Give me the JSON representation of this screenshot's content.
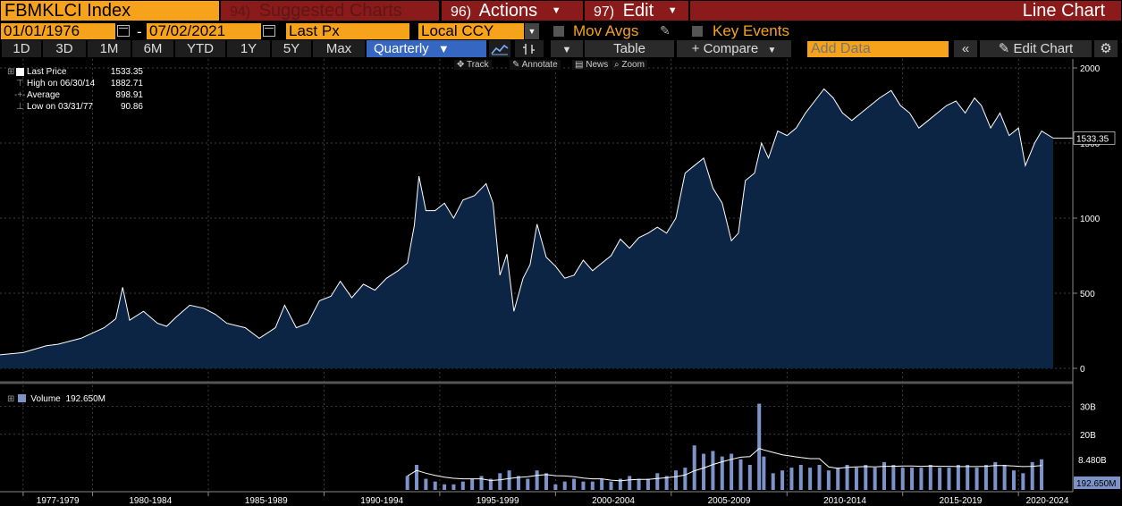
{
  "header": {
    "ticker": "FBMKLCI Index",
    "suggested_num": "94)",
    "suggested_label": "Suggested Charts",
    "actions_num": "96)",
    "actions_label": "Actions",
    "edit_num": "97)",
    "edit_label": "Edit",
    "title": "Line Chart"
  },
  "range": {
    "start": "01/01/1976",
    "end": "07/02/2021",
    "dash": "-",
    "field": "Last Px",
    "currency": "Local CCY",
    "mov_avgs": "Mov Avgs",
    "key_events": "Key Events"
  },
  "toolbar": {
    "periods": [
      "1D",
      "3D",
      "1M",
      "6M",
      "YTD",
      "1Y",
      "5Y",
      "Max"
    ],
    "frequency": "Quarterly",
    "table": "Table",
    "compare": "+ Compare",
    "add_data_placeholder": "Add Data",
    "edit_chart": "Edit Chart"
  },
  "chart_tools": [
    "Track",
    "Annotate",
    "News",
    "Zoom"
  ],
  "legend": {
    "last_price_label": "Last Price",
    "last_price_value": "1533.35",
    "high_label": "High on 06/30/14",
    "high_value": "1882.71",
    "average_label": "Average",
    "average_value": "898.91",
    "low_label": "Low on 03/31/77",
    "low_value": "90.86"
  },
  "volume_legend": {
    "label": "Volume",
    "value": "192.650M"
  },
  "price_axis": {
    "ticks": [
      "2000",
      "1500",
      "1000",
      "500",
      "0"
    ],
    "last_tag": "1533.35"
  },
  "volume_axis": {
    "ticks": [
      "30B",
      "20B"
    ],
    "avg_tag": "8.480B",
    "last_tag": "192.650M"
  },
  "x_axis": [
    "1977-1979",
    "1980-1984",
    "1985-1989",
    "1990-1994",
    "1995-1999",
    "2000-2004",
    "2005-2009",
    "2010-2014",
    "2015-2019",
    "2020-2024"
  ],
  "colors": {
    "accent": "#f7a21b",
    "header": "#8b1a1a",
    "active": "#3567c2",
    "area": "#0d2545",
    "volume": "#7d93c9"
  },
  "chart_data": {
    "type": "area",
    "title": "FBMKLCI Index",
    "xlabel": "",
    "ylabel": "",
    "ylim": [
      0,
      2000
    ],
    "y_ticks": [
      0,
      500,
      1000,
      1500,
      2000
    ],
    "x_range": [
      1976,
      2021.5
    ],
    "grid": true,
    "series": [
      {
        "name": "Last Price",
        "x": [
          1976.0,
          1977.0,
          1978.0,
          1978.5,
          1979.5,
          1980.5,
          1981.0,
          1981.3,
          1981.6,
          1982.2,
          1982.8,
          1983.2,
          1983.6,
          1984.2,
          1984.8,
          1985.3,
          1985.8,
          1986.2,
          1986.6,
          1987.2,
          1987.6,
          1987.9,
          1988.3,
          1988.8,
          1989.3,
          1989.8,
          1990.3,
          1990.7,
          1991.2,
          1991.7,
          1992.2,
          1992.7,
          1993.2,
          1993.6,
          1993.9,
          1994.1,
          1994.4,
          1994.8,
          1995.2,
          1995.6,
          1996.0,
          1996.5,
          1997.0,
          1997.3,
          1997.6,
          1997.9,
          1998.2,
          1998.6,
          1998.9,
          1999.2,
          1999.6,
          2000.0,
          2000.4,
          2000.8,
          2001.2,
          2001.6,
          2002.0,
          2002.4,
          2002.8,
          2003.2,
          2003.6,
          2004.0,
          2004.4,
          2004.8,
          2005.2,
          2005.6,
          2006.0,
          2006.4,
          2006.8,
          2007.2,
          2007.6,
          2007.9,
          2008.2,
          2008.6,
          2008.9,
          2009.2,
          2009.6,
          2010.0,
          2010.4,
          2010.8,
          2011.2,
          2011.6,
          2012.0,
          2012.4,
          2012.8,
          2013.2,
          2013.6,
          2014.0,
          2014.5,
          2014.9,
          2015.3,
          2015.7,
          2016.1,
          2016.5,
          2016.9,
          2017.3,
          2017.7,
          2018.1,
          2018.4,
          2018.8,
          2019.2,
          2019.6,
          2020.0,
          2020.3,
          2020.7,
          2021.0,
          2021.5
        ],
        "y": [
          90,
          105,
          150,
          160,
          200,
          270,
          330,
          540,
          320,
          380,
          300,
          280,
          340,
          420,
          400,
          360,
          300,
          285,
          270,
          200,
          240,
          270,
          420,
          270,
          300,
          450,
          480,
          580,
          470,
          560,
          520,
          600,
          650,
          700,
          950,
          1280,
          1050,
          1050,
          1100,
          1000,
          1120,
          1150,
          1230,
          1100,
          620,
          760,
          380,
          600,
          690,
          960,
          740,
          680,
          600,
          620,
          720,
          650,
          700,
          750,
          860,
          800,
          870,
          900,
          940,
          900,
          1000,
          1300,
          1350,
          1400,
          1200,
          1100,
          850,
          900,
          1250,
          1300,
          1500,
          1400,
          1580,
          1550,
          1600,
          1700,
          1780,
          1860,
          1800,
          1700,
          1650,
          1700,
          1750,
          1800,
          1850,
          1750,
          1700,
          1600,
          1650,
          1700,
          1750,
          1780,
          1700,
          1800,
          1750,
          1600,
          1700,
          1550,
          1600,
          1350,
          1500,
          1580,
          1533
        ]
      }
    ],
    "volume": {
      "name": "Volume",
      "ylim": [
        0,
        36
      ],
      "unit": "B",
      "x": [
        1993.6,
        1994.0,
        1994.4,
        1994.8,
        1995.2,
        1995.6,
        1996.0,
        1996.4,
        1996.8,
        1997.2,
        1997.6,
        1998.0,
        1998.4,
        1998.8,
        1999.2,
        1999.6,
        2000.0,
        2000.4,
        2000.8,
        2001.2,
        2001.6,
        2002.0,
        2002.4,
        2002.8,
        2003.2,
        2003.6,
        2004.0,
        2004.4,
        2004.8,
        2005.2,
        2005.6,
        2006.0,
        2006.4,
        2006.8,
        2007.2,
        2007.6,
        2008.0,
        2008.4,
        2008.8,
        2009.0,
        2009.4,
        2009.8,
        2010.2,
        2010.6,
        2011.0,
        2011.4,
        2011.8,
        2012.2,
        2012.6,
        2013.0,
        2013.4,
        2013.8,
        2014.2,
        2014.6,
        2015.0,
        2015.4,
        2015.8,
        2016.2,
        2016.6,
        2017.0,
        2017.4,
        2017.8,
        2018.2,
        2018.6,
        2019.0,
        2019.4,
        2019.8,
        2020.2,
        2020.6,
        2021.0
      ],
      "values": [
        5,
        9,
        4,
        3,
        2,
        2,
        3,
        4,
        5,
        4,
        6,
        7,
        5,
        4,
        7,
        6,
        2,
        3,
        4,
        3,
        3,
        4,
        3,
        4,
        5,
        4,
        4,
        6,
        5,
        7,
        8,
        16,
        13,
        14,
        12,
        13,
        11,
        9,
        31,
        12,
        6,
        7,
        8,
        9,
        8,
        9,
        7,
        8,
        9,
        8,
        9,
        8,
        10,
        9,
        8,
        8,
        8,
        9,
        8,
        8,
        9,
        9,
        8,
        9,
        10,
        9,
        7,
        6,
        10,
        11
      ]
    }
  }
}
